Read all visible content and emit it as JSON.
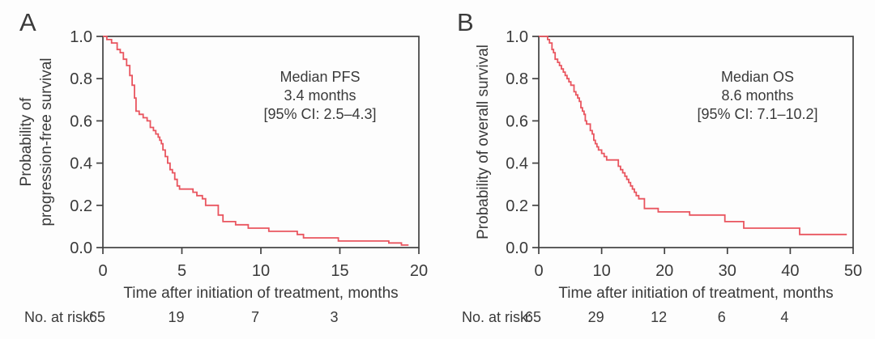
{
  "figure": {
    "background": "#fdfdfd",
    "text_color": "#3a3a3a",
    "axis_color": "#414141"
  },
  "chart_data": [
    {
      "type": "line",
      "subtype": "kaplan_meier_step",
      "panel_label": "A",
      "xlabel": "Time after initiation of treatment, months",
      "ylabel_lines": [
        "Probability of",
        "progression-free survival"
      ],
      "xlim": [
        0,
        20
      ],
      "ylim": [
        0.0,
        1.0
      ],
      "xticks": [
        0,
        5,
        10,
        15,
        20
      ],
      "yticks": [
        1.0,
        0.8,
        0.6,
        0.4,
        0.2,
        0.0
      ],
      "ytick_labels": [
        "1.0",
        "0.8",
        "0.6",
        "0.4",
        "0.2",
        "0.0"
      ],
      "grid": false,
      "legend": null,
      "line_color": "#e9555f",
      "annotation_lines": [
        "Median PFS",
        "3.4 months",
        "[95% CI: 2.5–4.3]"
      ],
      "series": [
        {
          "name": "Progression-free survival",
          "step_points": [
            [
              0,
              1.0
            ],
            [
              0.25,
              0.985
            ],
            [
              0.55,
              0.969
            ],
            [
              0.9,
              0.938
            ],
            [
              1.1,
              0.923
            ],
            [
              1.3,
              0.892
            ],
            [
              1.5,
              0.862
            ],
            [
              1.7,
              0.815
            ],
            [
              1.85,
              0.769
            ],
            [
              2.0,
              0.708
            ],
            [
              2.1,
              0.646
            ],
            [
              2.3,
              0.631
            ],
            [
              2.55,
              0.615
            ],
            [
              2.8,
              0.6
            ],
            [
              3.0,
              0.569
            ],
            [
              3.2,
              0.554
            ],
            [
              3.35,
              0.538
            ],
            [
              3.5,
              0.523
            ],
            [
              3.6,
              0.508
            ],
            [
              3.7,
              0.492
            ],
            [
              3.8,
              0.462
            ],
            [
              3.95,
              0.431
            ],
            [
              4.1,
              0.4
            ],
            [
              4.25,
              0.369
            ],
            [
              4.4,
              0.354
            ],
            [
              4.55,
              0.323
            ],
            [
              4.7,
              0.292
            ],
            [
              4.85,
              0.277
            ],
            [
              5.7,
              0.262
            ],
            [
              5.95,
              0.246
            ],
            [
              6.3,
              0.231
            ],
            [
              6.5,
              0.2
            ],
            [
              7.3,
              0.154
            ],
            [
              7.6,
              0.123
            ],
            [
              8.4,
              0.108
            ],
            [
              9.2,
              0.092
            ],
            [
              10.5,
              0.077
            ],
            [
              12.3,
              0.062
            ],
            [
              12.7,
              0.046
            ],
            [
              14.9,
              0.031
            ],
            [
              18.1,
              0.022
            ],
            [
              18.9,
              0.012
            ],
            [
              19.35,
              0.012
            ]
          ]
        }
      ],
      "at_risk": {
        "label": "No. at risk:",
        "times": [
          0,
          5,
          10,
          15
        ],
        "counts": [
          "65",
          "19",
          "7",
          "3"
        ]
      }
    },
    {
      "type": "line",
      "subtype": "kaplan_meier_step",
      "panel_label": "B",
      "xlabel": "Time after initiation of treatment, months",
      "ylabel_lines": [
        "Probability of overall survival"
      ],
      "xlim": [
        0,
        50
      ],
      "ylim": [
        0.0,
        1.0
      ],
      "xticks": [
        0,
        10,
        20,
        30,
        40,
        50
      ],
      "yticks": [
        1.0,
        0.8,
        0.6,
        0.4,
        0.2,
        0.0
      ],
      "ytick_labels": [
        "1.0",
        "0.8",
        "0.6",
        "0.4",
        "0.2",
        "0.0"
      ],
      "grid": false,
      "legend": null,
      "line_color": "#e9555f",
      "annotation_lines": [
        "Median OS",
        "8.6 months",
        "[95% CI: 7.1–10.2]"
      ],
      "series": [
        {
          "name": "Overall survival",
          "step_points": [
            [
              0,
              1.0
            ],
            [
              1.4,
              0.985
            ],
            [
              1.7,
              0.969
            ],
            [
              2.1,
              0.938
            ],
            [
              2.35,
              0.923
            ],
            [
              2.6,
              0.892
            ],
            [
              3.0,
              0.877
            ],
            [
              3.3,
              0.862
            ],
            [
              3.6,
              0.846
            ],
            [
              3.9,
              0.831
            ],
            [
              4.2,
              0.815
            ],
            [
              4.5,
              0.8
            ],
            [
              4.8,
              0.785
            ],
            [
              5.1,
              0.769
            ],
            [
              5.6,
              0.738
            ],
            [
              5.9,
              0.723
            ],
            [
              6.2,
              0.708
            ],
            [
              6.45,
              0.692
            ],
            [
              6.7,
              0.662
            ],
            [
              6.95,
              0.646
            ],
            [
              7.2,
              0.631
            ],
            [
              7.4,
              0.6
            ],
            [
              7.6,
              0.585
            ],
            [
              8.2,
              0.554
            ],
            [
              8.5,
              0.538
            ],
            [
              8.75,
              0.508
            ],
            [
              9.0,
              0.492
            ],
            [
              9.25,
              0.477
            ],
            [
              9.5,
              0.462
            ],
            [
              10.0,
              0.446
            ],
            [
              10.4,
              0.431
            ],
            [
              10.8,
              0.415
            ],
            [
              12.65,
              0.385
            ],
            [
              13.0,
              0.369
            ],
            [
              13.35,
              0.354
            ],
            [
              13.7,
              0.338
            ],
            [
              14.0,
              0.323
            ],
            [
              14.3,
              0.308
            ],
            [
              14.6,
              0.292
            ],
            [
              14.9,
              0.277
            ],
            [
              15.2,
              0.262
            ],
            [
              15.5,
              0.246
            ],
            [
              15.9,
              0.231
            ],
            [
              16.8,
              0.185
            ],
            [
              19.0,
              0.169
            ],
            [
              24.0,
              0.154
            ],
            [
              29.6,
              0.123
            ],
            [
              32.6,
              0.092
            ],
            [
              41.5,
              0.062
            ],
            [
              49.0,
              0.062
            ]
          ]
        }
      ],
      "at_risk": {
        "label": "No. at risk:",
        "times": [
          0,
          10,
          20,
          30,
          40
        ],
        "counts": [
          "65",
          "29",
          "12",
          "6",
          "4"
        ]
      }
    }
  ]
}
